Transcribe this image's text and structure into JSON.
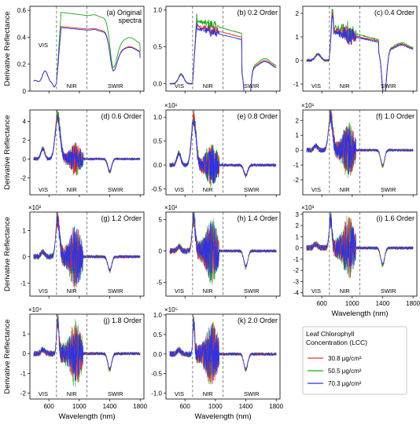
{
  "figure": {
    "legend": {
      "title_lines": [
        "Leaf Chlorophyll",
        "Concentration (LCC)"
      ],
      "entries": [
        {
          "label": "30.8 μg/cm²",
          "color": "#e8322b"
        },
        {
          "label": "50.5 μg/cm²",
          "color": "#1aa81a"
        },
        {
          "label": "70.3 μg/cm²",
          "color": "#2b35e0"
        }
      ]
    },
    "region_labels": [
      "VIS",
      "NIR",
      "SWIR"
    ],
    "boundaries_nm": [
      700,
      1100
    ],
    "ylabel": "Derivative Reflectance",
    "xlabel": "Wavelength (nm)"
  },
  "chart_data": [
    {
      "type": "line",
      "title": "(a) Original spectra",
      "title_lines": [
        "(a) Original",
        "spectra"
      ],
      "multiplier": "",
      "xlim": [
        350,
        1850
      ],
      "ylim": [
        0,
        0.63
      ],
      "yticks": [
        0,
        0.2,
        0.4,
        0.6
      ],
      "ytick_labels": [
        "0",
        "0.2",
        "0.4",
        "0.6"
      ],
      "xticks": [
        600,
        1000,
        1400,
        1800
      ],
      "xtick_labels": [
        "600",
        "1000",
        "1400",
        "1800"
      ],
      "show_xlabels": false,
      "show_ylabel": true,
      "xlabel": "",
      "region_layout": "top-left"
    },
    {
      "type": "line",
      "title": "(b) 0.2 Order",
      "multiplier": "",
      "xlim": [
        350,
        1850
      ],
      "ylim": [
        -0.1,
        1.05
      ],
      "yticks": [
        0,
        0.5,
        1.0
      ],
      "ytick_labels": [
        "0.0",
        "0.5",
        "1.0"
      ],
      "xticks": [
        600,
        1000,
        1400,
        1800
      ],
      "xtick_labels": [
        "600",
        "1000",
        "1400",
        "1800"
      ],
      "show_xlabels": false,
      "show_ylabel": false,
      "xlabel": "",
      "region_layout": "bottom"
    },
    {
      "type": "line",
      "title": "(c) 0.4 Order",
      "multiplier": "",
      "xlim": [
        350,
        1850
      ],
      "ylim": [
        -1.3,
        2.3
      ],
      "yticks": [
        -1,
        0,
        1,
        2
      ],
      "ytick_labels": [
        "-1",
        "0",
        "1",
        "2"
      ],
      "xticks": [
        600,
        1000,
        1400,
        1800
      ],
      "xtick_labels": [
        "600",
        "1000",
        "1400",
        "1800"
      ],
      "show_xlabels": false,
      "show_ylabel": false,
      "xlabel": "",
      "region_layout": "bottom"
    },
    {
      "type": "line",
      "title": "(d) 0.6 Order",
      "multiplier": "",
      "xlim": [
        350,
        1850
      ],
      "ylim": [
        -3.8,
        5.2
      ],
      "yticks": [
        -2,
        0,
        2,
        4
      ],
      "ytick_labels": [
        "-2",
        "0",
        "2",
        "4"
      ],
      "xticks": [
        600,
        1000,
        1400,
        1800
      ],
      "xtick_labels": [
        "600",
        "1000",
        "1400",
        "1800"
      ],
      "show_xlabels": false,
      "show_ylabel": true,
      "xlabel": "",
      "region_layout": "bottom"
    },
    {
      "type": "line",
      "title": "(e) 0.8 Order",
      "multiplier": "×10¹",
      "xlim": [
        350,
        1850
      ],
      "ylim": [
        -0.62,
        1.15
      ],
      "yticks": [
        -0.5,
        0,
        0.5,
        1.0
      ],
      "ytick_labels": [
        "-0.5",
        "0.0",
        "0.5",
        "1.0"
      ],
      "xticks": [
        600,
        1000,
        1400,
        1800
      ],
      "xtick_labels": [
        "600",
        "1000",
        "1400",
        "1800"
      ],
      "show_xlabels": false,
      "show_ylabel": false,
      "xlabel": "",
      "region_layout": "bottom"
    },
    {
      "type": "line",
      "title": "(f) 1.0 Order",
      "multiplier": "×10¹",
      "xlim": [
        350,
        1850
      ],
      "ylim": [
        -3.0,
        2.7
      ],
      "yticks": [
        -2,
        -1,
        0,
        1,
        2
      ],
      "ytick_labels": [
        "-2",
        "-1",
        "0",
        "1",
        "2"
      ],
      "xticks": [
        600,
        1000,
        1400,
        1800
      ],
      "xtick_labels": [
        "600",
        "1000",
        "1400",
        "1800"
      ],
      "show_xlabels": false,
      "show_ylabel": false,
      "xlabel": "",
      "region_layout": "bottom"
    },
    {
      "type": "line",
      "title": "(g) 1.2 Order",
      "multiplier": "×10²",
      "xlim": [
        350,
        1850
      ],
      "ylim": [
        -1.5,
        1.7
      ],
      "yticks": [
        -1,
        0,
        1
      ],
      "ytick_labels": [
        "-1",
        "0",
        "1"
      ],
      "xticks": [
        600,
        1000,
        1400,
        1800
      ],
      "xtick_labels": [
        "600",
        "1000",
        "1400",
        "1800"
      ],
      "show_xlabels": false,
      "show_ylabel": true,
      "xlabel": "",
      "region_layout": "bottom"
    },
    {
      "type": "line",
      "title": "(h) 1.4 Order",
      "multiplier": "×10²",
      "xlim": [
        350,
        1850
      ],
      "ylim": [
        -7.2,
        6.2
      ],
      "yticks": [
        -5,
        0,
        5
      ],
      "ytick_labels": [
        "-5",
        "0",
        "5"
      ],
      "xticks": [
        600,
        1000,
        1400,
        1800
      ],
      "xtick_labels": [
        "600",
        "1000",
        "1400",
        "1800"
      ],
      "show_xlabels": false,
      "show_ylabel": false,
      "xlabel": "",
      "region_layout": "bottom"
    },
    {
      "type": "line",
      "title": "(i) 1.6 Order",
      "multiplier": "×10³",
      "xlim": [
        350,
        1850
      ],
      "ylim": [
        -4.3,
        3.2
      ],
      "yticks": [
        -4,
        -3,
        -2,
        -1,
        0,
        1,
        2,
        3
      ],
      "ytick_labels": [
        "-4",
        "-3",
        "-2",
        "-1",
        "0",
        "1",
        "2",
        "3"
      ],
      "xticks": [
        600,
        1000,
        1400,
        1800
      ],
      "xtick_labels": [
        "600",
        "1000",
        "1400",
        "1800"
      ],
      "show_xlabels": true,
      "show_ylabel": false,
      "xlabel": "Wavelength (nm)",
      "region_layout": "bottom"
    },
    {
      "type": "line",
      "title": "(j) 1.8 Order",
      "multiplier": "×10⁴",
      "xlim": [
        350,
        1850
      ],
      "ylim": [
        -2.3,
        2.0
      ],
      "yticks": [
        -2,
        -1,
        0,
        1
      ],
      "ytick_labels": [
        "-2",
        "-1",
        "0",
        "1"
      ],
      "xticks": [
        600,
        1000,
        1400,
        1800
      ],
      "xtick_labels": [
        "600",
        "1000",
        "1400",
        "1800"
      ],
      "show_xlabels": true,
      "show_ylabel": true,
      "xlabel": "Wavelength (nm)",
      "region_layout": "bottom"
    },
    {
      "type": "line",
      "title": "(k) 2.0 Order",
      "multiplier": "×10⁵",
      "xlim": [
        350,
        1850
      ],
      "ylim": [
        -1.15,
        1.02
      ],
      "yticks": [
        -1.0,
        -0.5,
        0,
        0.5,
        1.0
      ],
      "ytick_labels": [
        "-1.0",
        "-0.5",
        "0.0",
        "0.5",
        "1.0"
      ],
      "xticks": [
        600,
        1000,
        1400,
        1800
      ],
      "xtick_labels": [
        "600",
        "1000",
        "1400",
        "1800"
      ],
      "show_xlabels": true,
      "show_ylabel": false,
      "xlabel": "Wavelength (nm)",
      "region_layout": "bottom"
    }
  ]
}
